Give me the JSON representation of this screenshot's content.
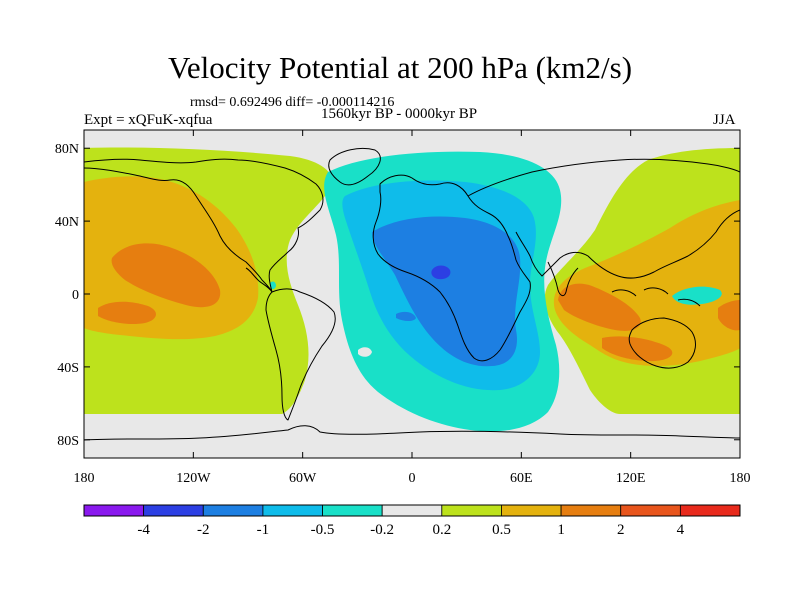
{
  "header": {
    "title": "Velocity Potential at 200 hPa (km2/s)",
    "stats": "rmsd= 0.692496 diff= -0.000114216",
    "experiment": "Expt = xQFuK-xqfua",
    "period": "1560kyr BP - 0000kyr BP",
    "season": "JJA"
  },
  "map": {
    "lat_labels": [
      {
        "label": "80N",
        "lat": 80
      },
      {
        "label": "40N",
        "lat": 40
      },
      {
        "label": "0",
        "lat": 0
      },
      {
        "label": "40S",
        "lat": -40
      },
      {
        "label": "80S",
        "lat": -80
      }
    ],
    "lon_labels": [
      {
        "label": "180",
        "lon": -180
      },
      {
        "label": "120W",
        "lon": -120
      },
      {
        "label": "60W",
        "lon": -60
      },
      {
        "label": "0",
        "lon": 0
      },
      {
        "label": "60E",
        "lon": 60
      },
      {
        "label": "120E",
        "lon": 120
      },
      {
        "label": "180",
        "lon": 180
      }
    ]
  },
  "colorbar": {
    "colors": [
      "#8a19ee",
      "#2c3fe3",
      "#1d7fe2",
      "#0fbcea",
      "#19e0c8",
      "#e8e8e8",
      "#bde21c",
      "#e4b20e",
      "#e67e10",
      "#e8551c",
      "#e82a1c"
    ],
    "labels": [
      "-4",
      "-2",
      "-1",
      "-0.5",
      "-0.2",
      "0.2",
      "0.5",
      "1",
      "2",
      "4"
    ]
  }
}
